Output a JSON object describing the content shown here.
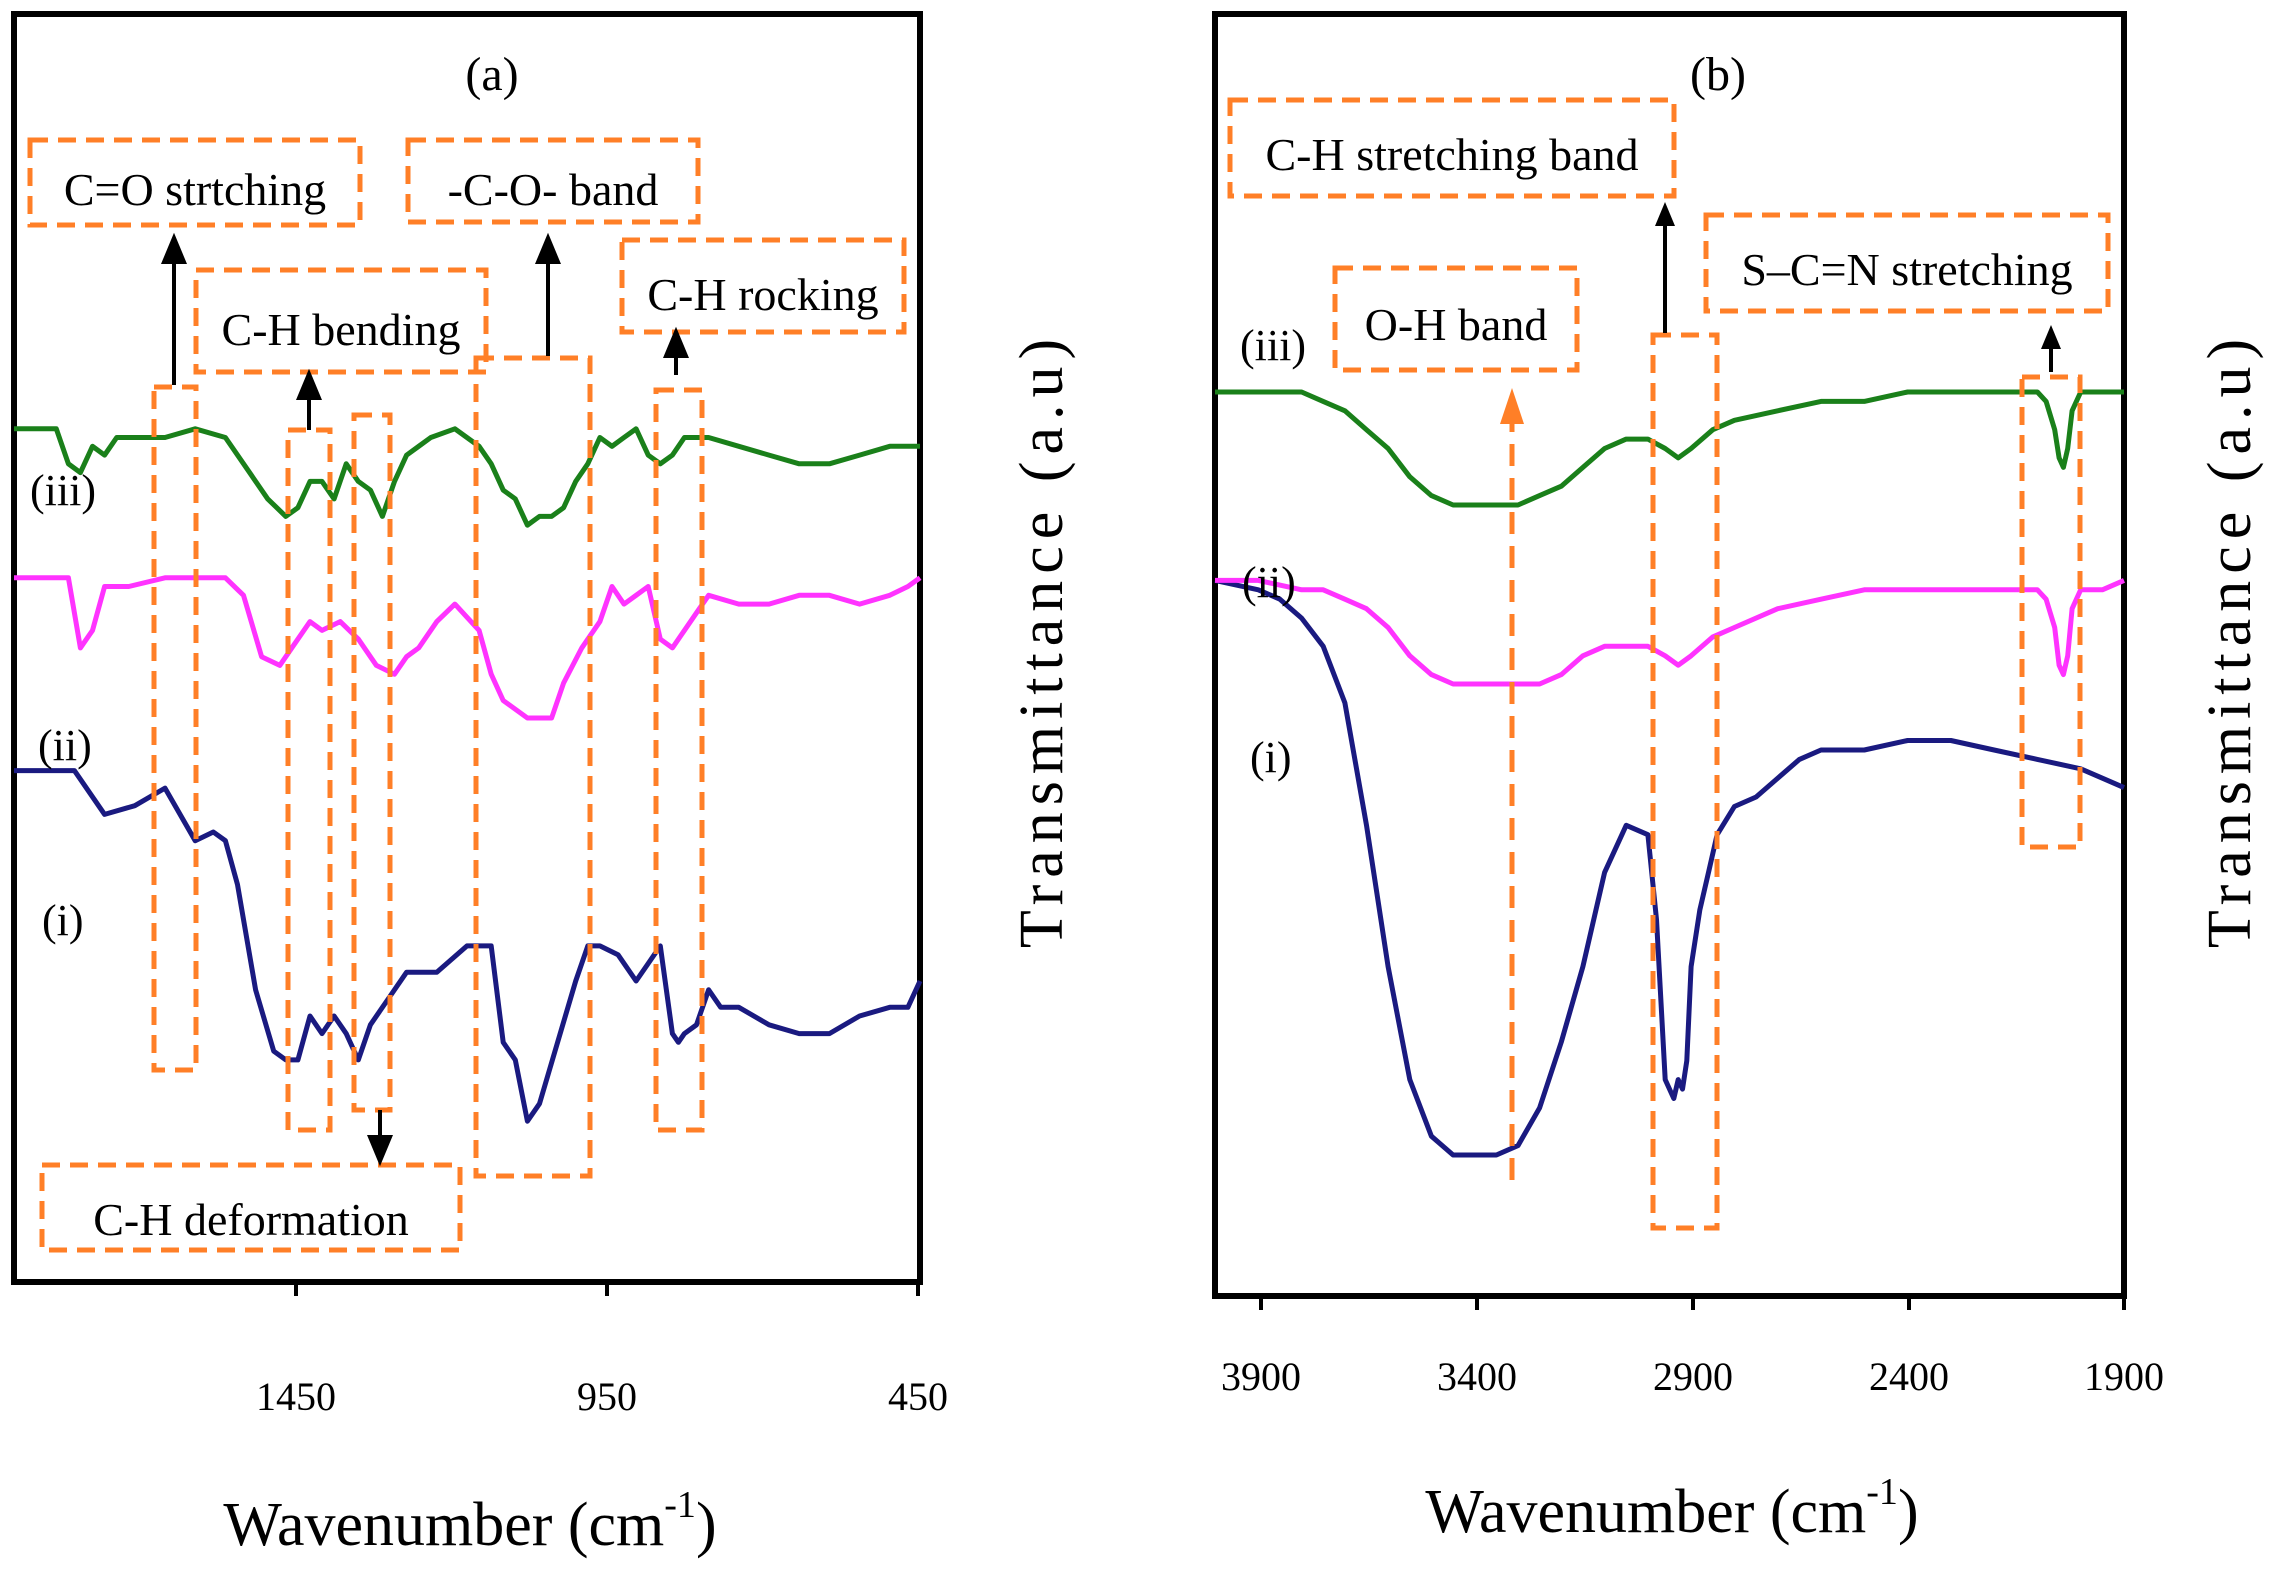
{
  "colors": {
    "series_i": "#1a1a80",
    "series_ii": "#ff33ff",
    "series_iii": "#1a801a",
    "annotation_box": "#ff7f27",
    "arrow": "#000000",
    "frame": "#000000"
  },
  "chart_data": [
    {
      "type": "line",
      "panel_label": "(a)",
      "xlabel": "Wavenumber (cm",
      "xlabel_sup": "-1",
      "xlabel_close": ")",
      "ylabel": "Transmittance (a.u)",
      "x_reversed": true,
      "xlim": [
        1950,
        450
      ],
      "xticks": [
        1450,
        950,
        450
      ],
      "ylim": [
        0,
        100
      ],
      "series": [
        {
          "name": "(i)",
          "color": "#1a1a80",
          "x": [
            1950,
            1900,
            1850,
            1800,
            1750,
            1700,
            1650,
            1620,
            1600,
            1580,
            1550,
            1520,
            1500,
            1480,
            1460,
            1440,
            1420,
            1400,
            1380,
            1360,
            1330,
            1300,
            1250,
            1200,
            1160,
            1140,
            1120,
            1100,
            1080,
            1050,
            1020,
            1000,
            980,
            950,
            920,
            900,
            880,
            860,
            850,
            840,
            820,
            800,
            780,
            750,
            700,
            650,
            600,
            550,
            500,
            470,
            450
          ],
          "y": [
            51,
            51,
            51,
            46,
            47,
            49,
            43,
            44,
            43,
            38,
            26,
            19,
            18,
            18,
            23,
            21,
            23,
            21,
            18,
            22,
            25,
            28,
            28,
            31,
            31,
            20,
            18,
            11,
            13,
            20,
            27,
            31,
            31,
            30,
            27,
            29,
            31,
            21,
            20,
            21,
            22,
            26,
            24,
            24,
            22,
            21,
            21,
            23,
            24,
            24,
            27
          ]
        },
        {
          "name": "(ii)",
          "color": "#ff33ff",
          "x": [
            1950,
            1900,
            1860,
            1840,
            1820,
            1800,
            1760,
            1700,
            1650,
            1600,
            1570,
            1540,
            1510,
            1490,
            1460,
            1440,
            1410,
            1380,
            1350,
            1320,
            1300,
            1280,
            1250,
            1220,
            1180,
            1160,
            1140,
            1100,
            1060,
            1040,
            1010,
            990,
            980,
            960,
            940,
            920,
            900,
            880,
            860,
            840,
            820,
            800,
            750,
            700,
            650,
            600,
            550,
            500,
            470,
            450
          ],
          "y": [
            73,
            73,
            73,
            65,
            67,
            72,
            72,
            73,
            73,
            73,
            71,
            64,
            63,
            65,
            68,
            67,
            68,
            66,
            63,
            62,
            64,
            65,
            68,
            70,
            67,
            62,
            59,
            57,
            57,
            61,
            65,
            67,
            68,
            72,
            70,
            71,
            72,
            66,
            65,
            67,
            69,
            71,
            70,
            70,
            71,
            71,
            70,
            71,
            72,
            73
          ]
        },
        {
          "name": "(iii)",
          "color": "#1a801a",
          "x": [
            1950,
            1880,
            1860,
            1840,
            1820,
            1800,
            1780,
            1760,
            1700,
            1650,
            1600,
            1560,
            1530,
            1500,
            1480,
            1460,
            1440,
            1420,
            1400,
            1380,
            1360,
            1340,
            1320,
            1300,
            1280,
            1260,
            1220,
            1180,
            1160,
            1140,
            1120,
            1100,
            1080,
            1060,
            1040,
            1020,
            1000,
            980,
            960,
            940,
            920,
            900,
            880,
            860,
            840,
            820,
            800,
            750,
            700,
            650,
            600,
            550,
            500,
            470,
            450
          ],
          "y": [
            90,
            90,
            86,
            85,
            88,
            87,
            89,
            89,
            89,
            90,
            89,
            85,
            82,
            80,
            81,
            84,
            84,
            82,
            86,
            84,
            83,
            80,
            84,
            87,
            88,
            89,
            90,
            88,
            86,
            83,
            82,
            79,
            80,
            80,
            81,
            84,
            86,
            89,
            88,
            89,
            90,
            87,
            86,
            87,
            89,
            89,
            89,
            88,
            87,
            86,
            86,
            87,
            88,
            88,
            88
          ]
        }
      ],
      "annotations": [
        "C=O strtching",
        "C-H bending",
        "-C-O- band",
        "C-H rocking",
        "C-H deformation"
      ]
    },
    {
      "type": "line",
      "panel_label": "(b)",
      "xlabel": "Wavenumber (cm",
      "xlabel_sup": "-1",
      "xlabel_close": ")",
      "ylabel": "Transmittance (a.u)",
      "x_reversed": true,
      "xlim": [
        4000,
        1900
      ],
      "xticks": [
        3900,
        3400,
        2900,
        2400,
        1900
      ],
      "ylim": [
        0,
        100
      ],
      "series": [
        {
          "name": "(i)",
          "color": "#1a1a80",
          "x": [
            4000,
            3900,
            3850,
            3800,
            3750,
            3700,
            3650,
            3600,
            3550,
            3500,
            3450,
            3400,
            3350,
            3300,
            3250,
            3200,
            3150,
            3100,
            3050,
            3000,
            2980,
            2960,
            2940,
            2930,
            2920,
            2910,
            2900,
            2880,
            2860,
            2840,
            2800,
            2750,
            2700,
            2650,
            2600,
            2500,
            2400,
            2300,
            2200,
            2100,
            2000,
            1950,
            1900
          ],
          "y": [
            71,
            70,
            69,
            67,
            64,
            58,
            45,
            30,
            18,
            12,
            10,
            10,
            10,
            11,
            15,
            22,
            30,
            40,
            45,
            44,
            35,
            18,
            16,
            18,
            17,
            20,
            30,
            36,
            40,
            44,
            47,
            48,
            50,
            52,
            53,
            53,
            54,
            54,
            53,
            52,
            51,
            50,
            49
          ]
        },
        {
          "name": "(ii)",
          "color": "#ff33ff",
          "x": [
            4000,
            3900,
            3800,
            3750,
            3700,
            3650,
            3600,
            3550,
            3500,
            3450,
            3400,
            3350,
            3300,
            3250,
            3200,
            3150,
            3100,
            3050,
            3000,
            2960,
            2930,
            2900,
            2850,
            2800,
            2700,
            2600,
            2500,
            2400,
            2300,
            2200,
            2150,
            2100,
            2080,
            2060,
            2050,
            2040,
            2030,
            2020,
            2000,
            1950,
            1900
          ],
          "y": [
            71,
            71,
            70,
            70,
            69,
            68,
            66,
            63,
            61,
            60,
            60,
            60,
            60,
            60,
            61,
            63,
            64,
            64,
            64,
            63,
            62,
            63,
            65,
            66,
            68,
            69,
            70,
            70,
            70,
            70,
            70,
            70,
            69,
            66,
            62,
            61,
            63,
            68,
            70,
            70,
            71
          ]
        },
        {
          "name": "(iii)",
          "color": "#1a801a",
          "x": [
            4000,
            3900,
            3800,
            3750,
            3700,
            3650,
            3600,
            3550,
            3500,
            3450,
            3400,
            3350,
            3300,
            3250,
            3200,
            3150,
            3100,
            3050,
            3000,
            2960,
            2930,
            2900,
            2850,
            2800,
            2700,
            2600,
            2500,
            2400,
            2300,
            2200,
            2150,
            2100,
            2080,
            2060,
            2050,
            2040,
            2030,
            2020,
            2000,
            1950,
            1900
          ],
          "y": [
            91,
            91,
            91,
            90,
            89,
            87,
            85,
            82,
            80,
            79,
            79,
            79,
            79,
            80,
            81,
            83,
            85,
            86,
            86,
            85,
            84,
            85,
            87,
            88,
            89,
            90,
            90,
            91,
            91,
            91,
            91,
            91,
            90,
            87,
            84,
            83,
            85,
            89,
            91,
            91,
            91
          ]
        }
      ],
      "annotations": [
        "C-H stretching band",
        "O-H band",
        "S–C=N stretching"
      ]
    }
  ]
}
